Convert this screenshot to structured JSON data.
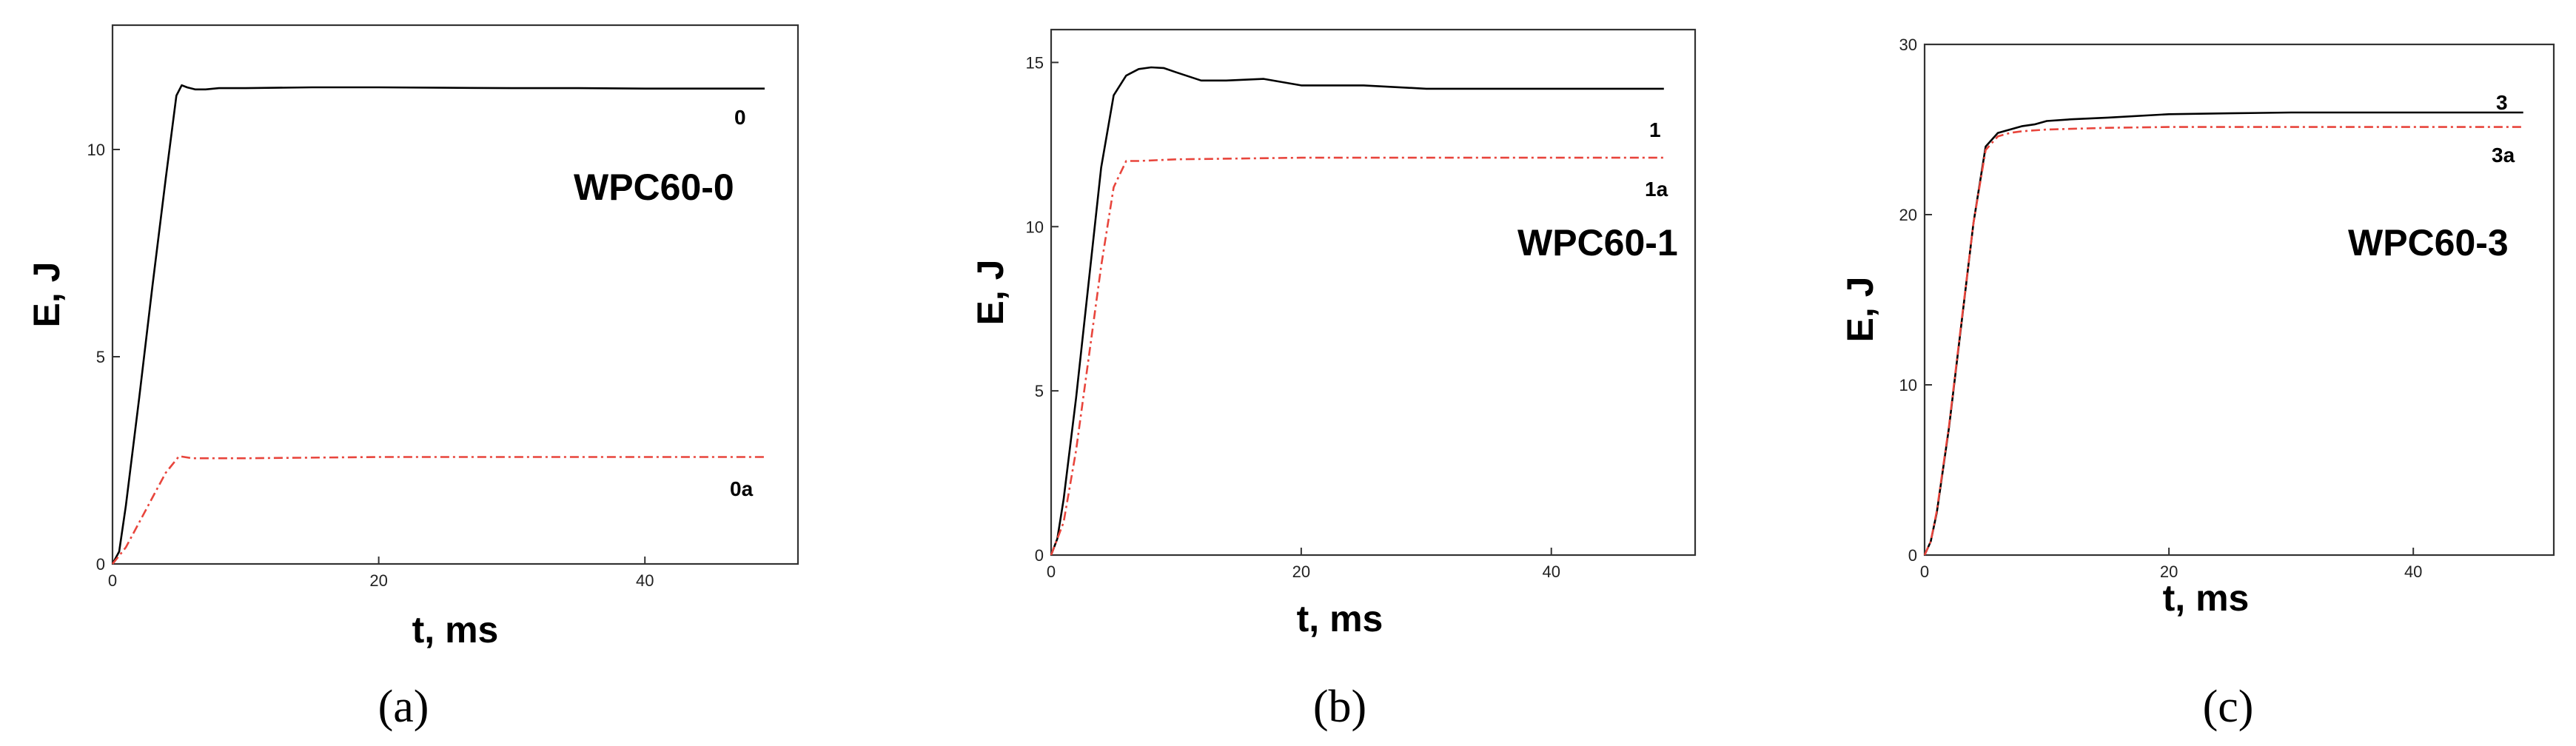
{
  "chart_data": [
    {
      "type": "line",
      "caption": "(a)",
      "title": "WPC60-0",
      "xlabel": "t, ms",
      "ylabel": "E, J",
      "xlim": [
        0,
        51.5
      ],
      "ylim": [
        0,
        13
      ],
      "xticks": [
        0,
        20,
        40
      ],
      "yticks": [
        0,
        5,
        10
      ],
      "series": [
        {
          "name": "0",
          "color": "#000000",
          "style": "solid",
          "x": [
            0,
            0.5,
            1,
            2,
            3,
            4,
            4.8,
            5.2,
            5.6,
            6.2,
            7,
            8,
            10,
            15,
            20,
            25,
            30,
            35,
            40,
            45,
            49
          ],
          "y": [
            0,
            0.3,
            1.4,
            4.0,
            6.7,
            9.3,
            11.3,
            11.55,
            11.5,
            11.45,
            11.45,
            11.48,
            11.48,
            11.5,
            11.5,
            11.49,
            11.48,
            11.48,
            11.47,
            11.47,
            11.47
          ]
        },
        {
          "name": "0a",
          "color": "#e8453c",
          "style": "dashdot",
          "x": [
            0,
            1,
            2,
            3,
            4,
            5,
            6,
            10,
            20,
            30,
            40,
            49
          ],
          "y": [
            0,
            0.4,
            1.0,
            1.6,
            2.2,
            2.6,
            2.55,
            2.55,
            2.58,
            2.58,
            2.58,
            2.58
          ]
        }
      ]
    },
    {
      "type": "line",
      "caption": "(b)",
      "title": "WPC60-1",
      "xlabel": "t, ms",
      "ylabel": "E, J",
      "xlim": [
        0,
        51.5
      ],
      "ylim": [
        0,
        16
      ],
      "xticks": [
        0,
        20,
        40
      ],
      "yticks": [
        0,
        5,
        10,
        15
      ],
      "series": [
        {
          "name": "1",
          "color": "#000000",
          "style": "solid",
          "x": [
            0,
            0.5,
            1,
            2,
            3,
            4,
            5,
            6,
            7,
            8,
            9,
            10,
            12,
            14,
            17,
            20,
            25,
            30,
            40,
            49
          ],
          "y": [
            0,
            0.5,
            1.7,
            4.8,
            8.3,
            11.8,
            14.0,
            14.6,
            14.8,
            14.85,
            14.83,
            14.7,
            14.45,
            14.45,
            14.5,
            14.3,
            14.3,
            14.2,
            14.2,
            14.2
          ]
        },
        {
          "name": "1a",
          "color": "#e8453c",
          "style": "dashdot",
          "x": [
            0,
            1,
            2,
            3,
            4,
            5,
            6,
            7,
            10,
            20,
            30,
            40,
            49
          ],
          "y": [
            0,
            1.0,
            3.2,
            6.0,
            8.8,
            11.2,
            12.0,
            12.0,
            12.05,
            12.1,
            12.1,
            12.1,
            12.1
          ]
        }
      ]
    },
    {
      "type": "line",
      "caption": "(c)",
      "title": "WPC60-3",
      "xlabel": "t, ms",
      "ylabel": "E, J",
      "xlim": [
        0,
        51.5
      ],
      "ylim": [
        0,
        30
      ],
      "xticks": [
        0,
        20,
        40
      ],
      "yticks": [
        0,
        10,
        20,
        30
      ],
      "series": [
        {
          "name": "3",
          "color": "#000000",
          "style": "solid",
          "x": [
            0,
            0.5,
            1,
            2,
            3,
            4,
            5,
            6,
            7,
            8,
            9,
            10,
            12,
            15,
            20,
            25,
            30,
            40,
            49
          ],
          "y": [
            0,
            0.8,
            2.5,
            7.5,
            13.5,
            19.5,
            24.0,
            24.8,
            25.0,
            25.2,
            25.3,
            25.5,
            25.6,
            25.7,
            25.9,
            25.95,
            26.0,
            26.0,
            26.0
          ]
        },
        {
          "name": "3a",
          "color": "#e8453c",
          "style": "dashdot",
          "x": [
            0,
            0.5,
            1,
            2,
            3,
            4,
            5,
            6,
            7,
            8,
            10,
            15,
            20,
            30,
            40,
            49
          ],
          "y": [
            0,
            0.8,
            2.6,
            7.6,
            13.6,
            19.5,
            23.8,
            24.6,
            24.8,
            24.9,
            25.0,
            25.1,
            25.15,
            25.15,
            25.15,
            25.15
          ]
        }
      ]
    }
  ]
}
